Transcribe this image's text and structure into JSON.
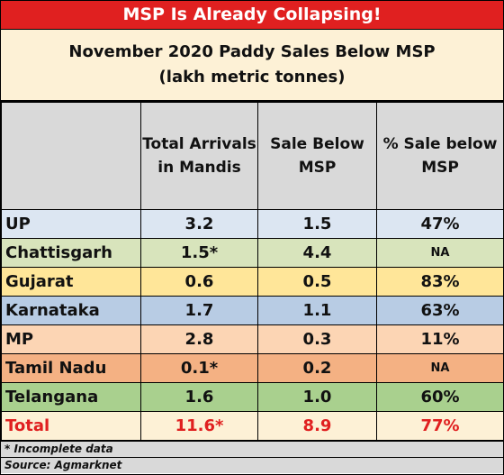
{
  "banner": "MSP Is Already Collapsing!",
  "chart_data": {
    "type": "table",
    "title": "November 2020 Paddy Sales Below MSP",
    "subtitle": "(lakh metric tonnes)",
    "columns": [
      "",
      "Total Arrivals in Mandis",
      "Sale Below MSP",
      "% Sale below MSP"
    ],
    "rows": [
      {
        "state": "UP",
        "arrivals": "3.2",
        "below": "1.5",
        "pct": "47%",
        "color": "#dce6f2"
      },
      {
        "state": "Chattisgarh",
        "arrivals": "1.5*",
        "below": "4.4",
        "pct": "NA",
        "color": "#d8e4bc"
      },
      {
        "state": "Gujarat",
        "arrivals": "0.6",
        "below": "0.5",
        "pct": "83%",
        "color": "#ffe699"
      },
      {
        "state": "Karnataka",
        "arrivals": "1.7",
        "below": "1.1",
        "pct": "63%",
        "color": "#b8cce4"
      },
      {
        "state": "MP",
        "arrivals": "2.8",
        "below": "0.3",
        "pct": "11%",
        "color": "#fcd5b4"
      },
      {
        "state": "Tamil Nadu",
        "arrivals": "0.1*",
        "below": "0.2",
        "pct": "NA",
        "color": "#f4b183"
      },
      {
        "state": "Telangana",
        "arrivals": "1.6",
        "below": "1.0",
        "pct": "60%",
        "color": "#a9d08e"
      },
      {
        "state": "Total",
        "arrivals": "11.6*",
        "below": "8.9",
        "pct": "77%",
        "color": "#fdf1d6",
        "total": true
      }
    ]
  },
  "footnotes": [
    "* Incomplete data",
    "Source: Agmarknet"
  ]
}
